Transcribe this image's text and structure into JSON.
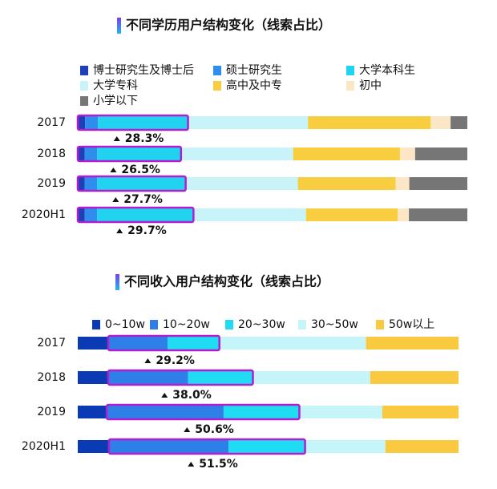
{
  "chart_data": [
    {
      "type": "stacked-bar-horizontal",
      "title": "不同学历用户结构变化（线索占比）",
      "categories": [
        "2017",
        "2018",
        "2019",
        "2020H1"
      ],
      "xlim": [
        0,
        100
      ],
      "series": [
        {
          "name": "博士研究生及博士后",
          "color": "#1d3fb8",
          "values": [
            1.9,
            1.8,
            1.8,
            1.8
          ]
        },
        {
          "name": "硕士研究生",
          "color": "#2f8ded",
          "values": [
            3.3,
            3.2,
            3.2,
            3.2
          ]
        },
        {
          "name": "大学本科生",
          "color": "#22d3f0",
          "values": [
            23.1,
            21.5,
            22.7,
            24.7
          ]
        },
        {
          "name": "大学专科",
          "color": "#c8f3f8",
          "values": [
            30.8,
            28.8,
            28.8,
            28.9
          ]
        },
        {
          "name": "高中及中专",
          "color": "#f8cd40",
          "values": [
            31.5,
            27.4,
            25.1,
            23.5
          ]
        },
        {
          "name": "初中",
          "color": "#fbe6c6",
          "values": [
            5.1,
            3.9,
            3.5,
            2.9
          ]
        },
        {
          "name": "小学以下",
          "color": "#767676",
          "values": [
            4.3,
            13.4,
            14.9,
            15.0
          ]
        }
      ],
      "annotations": [
        "28.3%",
        "26.5%",
        "27.7%",
        "29.7%"
      ]
    },
    {
      "type": "stacked-bar-horizontal",
      "title": "不同收入用户结构变化（线索占比）",
      "categories": [
        "2017",
        "2018",
        "2019",
        "2020H1"
      ],
      "xlim": [
        0,
        100
      ],
      "series": [
        {
          "name": "0~10w",
          "color": "#0a3bb5",
          "values": [
            8.0,
            8.0,
            7.6,
            8.2
          ]
        },
        {
          "name": "10~20w",
          "color": "#2f7fe8",
          "values": [
            15.6,
            21.0,
            30.7,
            31.4
          ]
        },
        {
          "name": "20~30w",
          "color": "#1fdcf3",
          "values": [
            13.6,
            17.0,
            19.9,
            20.1
          ]
        },
        {
          "name": "30~50w",
          "color": "#c5f4f9",
          "values": [
            38.5,
            30.8,
            21.8,
            21.1
          ]
        },
        {
          "name": "50w以上",
          "color": "#f9c940",
          "values": [
            24.3,
            23.2,
            20.0,
            19.2
          ]
        }
      ],
      "annotations": [
        "29.2%",
        "38.0%",
        "50.6%",
        "51.5%"
      ]
    }
  ]
}
